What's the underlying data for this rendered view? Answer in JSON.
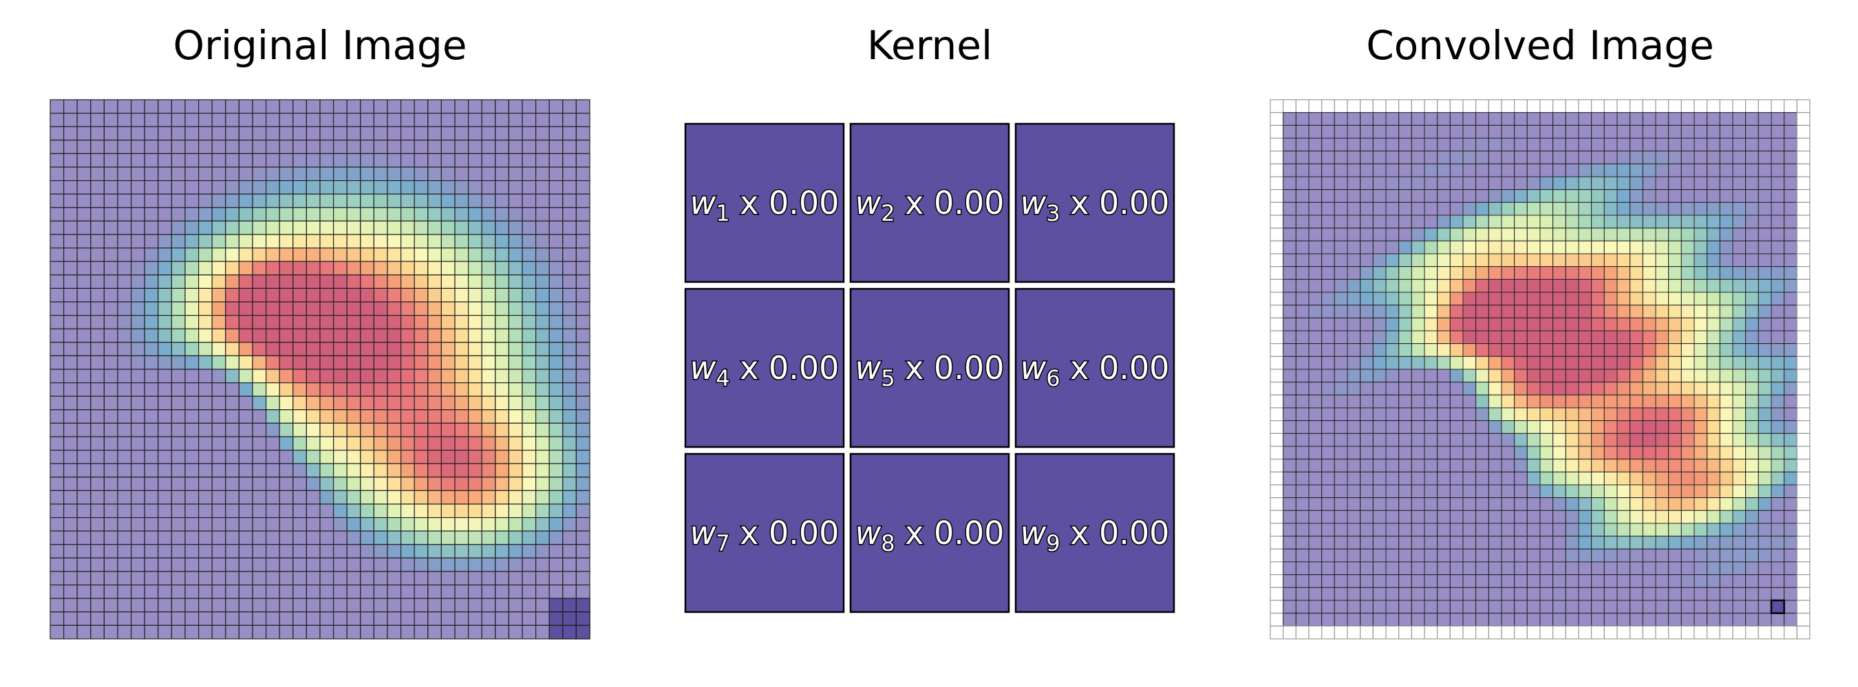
{
  "panels": {
    "original_title": "Original Image",
    "kernel_title": "Kernel",
    "convolved_title": "Convolved Image"
  },
  "original_image": {
    "grid_size": 40,
    "colormap": "Spectral_r",
    "description_of_field": "smooth blob with hot core at center-left and a spiral arm sweeping down-right",
    "highlighted_kernel_window": {
      "row_start": 37,
      "col_start": 37,
      "size": 3
    }
  },
  "kernel": {
    "cells": [
      {
        "weight": "w",
        "index": "1",
        "value": "x 0.00"
      },
      {
        "weight": "w",
        "index": "2",
        "value": "x 0.00"
      },
      {
        "weight": "w",
        "index": "3",
        "value": "x 0.00"
      },
      {
        "weight": "w",
        "index": "4",
        "value": "x 0.00"
      },
      {
        "weight": "w",
        "index": "5",
        "value": "x 0.00"
      },
      {
        "weight": "w",
        "index": "6",
        "value": "x 0.00"
      },
      {
        "weight": "w",
        "index": "7",
        "value": "x 0.00"
      },
      {
        "weight": "w",
        "index": "8",
        "value": "x 0.00"
      },
      {
        "weight": "w",
        "index": "9",
        "value": "x 0.00"
      }
    ],
    "cell_color": "#5e50a1"
  },
  "convolved_image": {
    "grid_size": 40,
    "padding_border": 1,
    "highlighted_output_cell": {
      "row": 38,
      "col": 38
    }
  },
  "colors": {
    "grid_line": "#222222",
    "border_grid_line": "#999999",
    "highlight": "#5e50a1"
  }
}
